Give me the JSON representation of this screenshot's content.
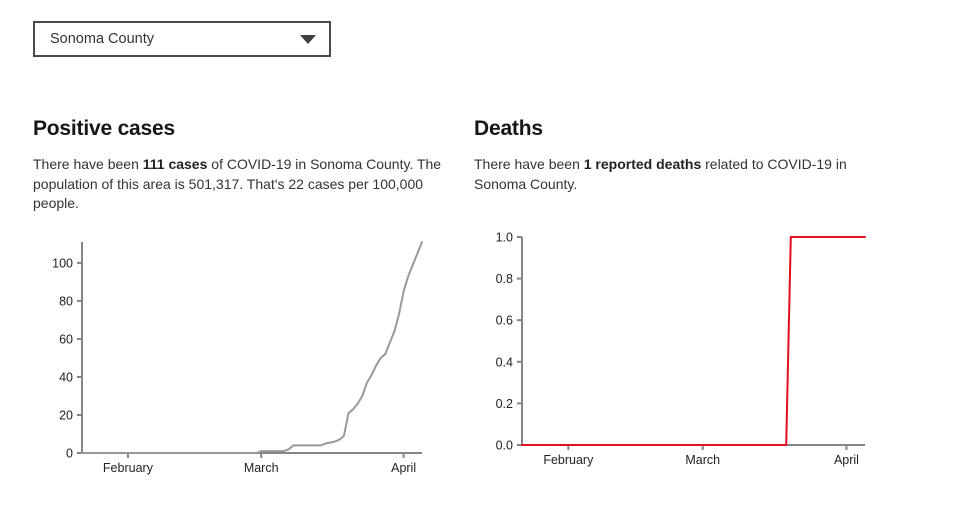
{
  "county_selector": {
    "value": "Sonoma County",
    "caret_icon": "triangle-down"
  },
  "cases_section": {
    "title": "Positive cases",
    "description": {
      "prefix": "There have been ",
      "bold": "111 cases",
      "suffix": " of COVID-19 in Sonoma County. The population of this area is 501,317. That's 22 cases per 100,000 people."
    }
  },
  "deaths_section": {
    "title": "Deaths",
    "description": {
      "prefix": "There have been ",
      "bold": "1 reported deaths",
      "suffix": " related to COVID-19 in Sonoma County."
    }
  },
  "chart_data": [
    {
      "type": "line",
      "name": "positive-cases-over-time",
      "line_color": "#999999",
      "axis_color": "#858585",
      "tick_text_color": "#222222",
      "x_unit": "days since Jan 22 2020",
      "xlim": [
        0,
        74
      ],
      "ylim": [
        0,
        111
      ],
      "y_ticks": [
        {
          "v": 0,
          "label": "0"
        },
        {
          "v": 20,
          "label": "20"
        },
        {
          "v": 40,
          "label": "40"
        },
        {
          "v": 60,
          "label": "60"
        },
        {
          "v": 80,
          "label": "80"
        },
        {
          "v": 100,
          "label": "100"
        }
      ],
      "x_ticks": [
        {
          "v": 10,
          "label": "February"
        },
        {
          "v": 39,
          "label": "March"
        },
        {
          "v": 70,
          "label": "April"
        }
      ],
      "points": [
        [
          0,
          0
        ],
        [
          38,
          0
        ],
        [
          39,
          1
        ],
        [
          44,
          1
        ],
        [
          45,
          2
        ],
        [
          46,
          4
        ],
        [
          52,
          4
        ],
        [
          53,
          5
        ],
        [
          55,
          6
        ],
        [
          56,
          7
        ],
        [
          57,
          9
        ],
        [
          58,
          21
        ],
        [
          59,
          23
        ],
        [
          60,
          26
        ],
        [
          61,
          30
        ],
        [
          62,
          37
        ],
        [
          63,
          41
        ],
        [
          64,
          46
        ],
        [
          65,
          50
        ],
        [
          66,
          52
        ],
        [
          67,
          58
        ],
        [
          68,
          64
        ],
        [
          69,
          73
        ],
        [
          70,
          85
        ],
        [
          71,
          93
        ],
        [
          72,
          99
        ],
        [
          73,
          105
        ],
        [
          74,
          111
        ]
      ]
    },
    {
      "type": "line",
      "name": "deaths-over-time",
      "line_color": "#e01020",
      "axis_color": "#858585",
      "tick_text_color": "#222222",
      "x_unit": "days since Jan 22 2020",
      "xlim": [
        0,
        74
      ],
      "ylim": [
        0,
        1.0
      ],
      "y_ticks": [
        {
          "v": 0.0,
          "label": "0.0"
        },
        {
          "v": 0.2,
          "label": "0.2"
        },
        {
          "v": 0.4,
          "label": "0.4"
        },
        {
          "v": 0.6,
          "label": "0.6"
        },
        {
          "v": 0.8,
          "label": "0.8"
        },
        {
          "v": 1.0,
          "label": "1.0"
        }
      ],
      "x_ticks": [
        {
          "v": 10,
          "label": "February"
        },
        {
          "v": 39,
          "label": "March"
        },
        {
          "v": 70,
          "label": "April"
        }
      ],
      "points": [
        [
          0,
          0
        ],
        [
          57,
          0
        ],
        [
          58,
          1
        ],
        [
          74,
          1
        ]
      ]
    }
  ]
}
